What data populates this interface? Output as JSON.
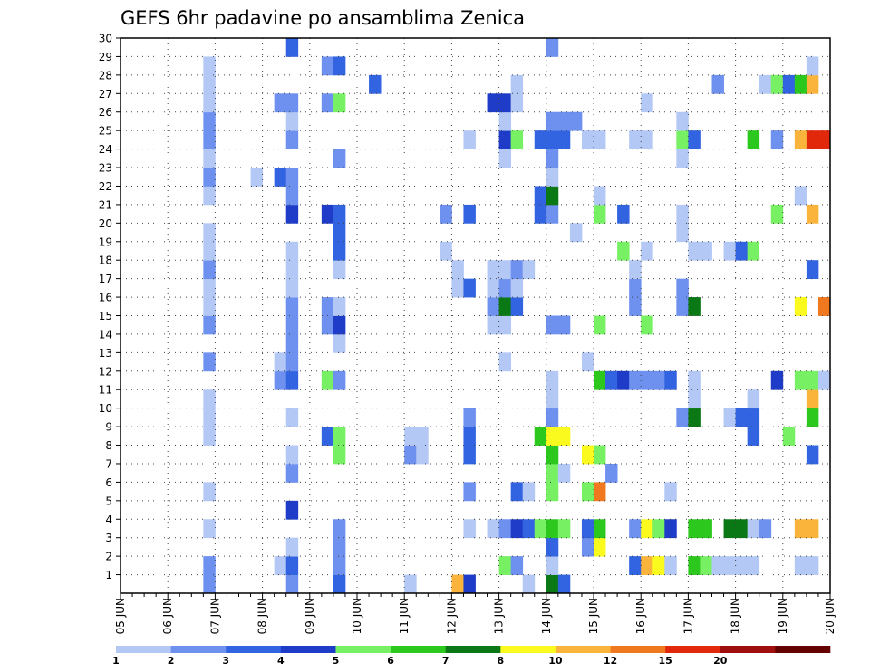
{
  "chart_data": {
    "type": "heatmap",
    "title": "GEFS 6hr padavine po ansamblima Zenica",
    "xlabel": "",
    "ylabel": "",
    "x_ticks": [
      "05 JUN",
      "06 JUN",
      "07 JUN",
      "08 JUN",
      "09 JUN",
      "10 JUN",
      "11 JUN",
      "12 JUN",
      "13 JUN",
      "14 JUN",
      "15 JUN",
      "16 JUN",
      "17 JUN",
      "18 JUN",
      "19 JUN",
      "20 JUN"
    ],
    "y_ticks": [
      "1",
      "2",
      "3",
      "4",
      "5",
      "6",
      "7",
      "8",
      "9",
      "10",
      "11",
      "12",
      "13",
      "14",
      "15",
      "16",
      "17",
      "18",
      "19",
      "20",
      "21",
      "22",
      "23",
      "24",
      "25",
      "26",
      "27",
      "28",
      "29",
      "30"
    ],
    "xlim": [
      0,
      60
    ],
    "ylim": [
      0,
      30
    ],
    "grid": true,
    "legend": "bottom",
    "colorbar": {
      "labels": [
        "1",
        "2",
        "3",
        "4",
        "5",
        "6",
        "7",
        "8",
        "10",
        "12",
        "15",
        "20"
      ],
      "colors": [
        "#b4c8f5",
        "#6e91f0",
        "#3264e1",
        "#1e3cc8",
        "#78f064",
        "#2dc81e",
        "#0a7814",
        "#fafa1e",
        "#fab43c",
        "#f0781e",
        "#e1280a",
        "#a00f0f",
        "#640000"
      ]
    },
    "cells": [
      [
        7,
        1,
        2
      ],
      [
        7,
        2,
        2
      ],
      [
        7,
        4,
        1
      ],
      [
        7,
        6,
        1
      ],
      [
        7,
        9,
        1
      ],
      [
        7,
        10,
        1
      ],
      [
        7,
        11,
        1
      ],
      [
        7,
        13,
        2
      ],
      [
        7,
        15,
        2
      ],
      [
        7,
        16,
        1
      ],
      [
        7,
        17,
        1
      ],
      [
        7,
        18,
        2
      ],
      [
        7,
        19,
        1
      ],
      [
        7,
        20,
        1
      ],
      [
        7,
        22,
        1
      ],
      [
        7,
        23,
        2
      ],
      [
        7,
        24,
        1
      ],
      [
        7,
        25,
        2
      ],
      [
        7,
        26,
        2
      ],
      [
        7,
        27,
        1
      ],
      [
        7,
        28,
        1
      ],
      [
        7,
        29,
        1
      ],
      [
        11,
        23,
        1
      ],
      [
        13,
        2,
        1
      ],
      [
        13,
        12,
        2
      ],
      [
        13,
        13,
        1
      ],
      [
        13,
        23,
        3
      ],
      [
        13,
        27,
        2
      ],
      [
        14,
        1,
        2
      ],
      [
        14,
        2,
        3
      ],
      [
        14,
        3,
        1
      ],
      [
        14,
        5,
        4
      ],
      [
        14,
        7,
        2
      ],
      [
        14,
        8,
        1
      ],
      [
        14,
        10,
        1
      ],
      [
        14,
        12,
        3
      ],
      [
        14,
        13,
        2
      ],
      [
        14,
        14,
        2
      ],
      [
        14,
        15,
        2
      ],
      [
        14,
        16,
        2
      ],
      [
        14,
        17,
        1
      ],
      [
        14,
        18,
        1
      ],
      [
        14,
        19,
        1
      ],
      [
        14,
        21,
        4
      ],
      [
        14,
        22,
        2
      ],
      [
        14,
        23,
        2
      ],
      [
        14,
        25,
        2
      ],
      [
        14,
        26,
        1
      ],
      [
        14,
        27,
        2
      ],
      [
        14,
        30,
        3
      ],
      [
        17,
        9,
        3
      ],
      [
        17,
        12,
        5
      ],
      [
        17,
        15,
        2
      ],
      [
        17,
        16,
        2
      ],
      [
        17,
        21,
        4
      ],
      [
        17,
        27,
        2
      ],
      [
        17,
        29,
        2
      ],
      [
        18,
        1,
        3
      ],
      [
        18,
        2,
        2
      ],
      [
        18,
        3,
        2
      ],
      [
        18,
        4,
        2
      ],
      [
        18,
        8,
        5
      ],
      [
        18,
        9,
        5
      ],
      [
        18,
        12,
        2
      ],
      [
        18,
        14,
        1
      ],
      [
        18,
        15,
        4
      ],
      [
        18,
        16,
        1
      ],
      [
        18,
        18,
        1
      ],
      [
        18,
        19,
        3
      ],
      [
        18,
        20,
        3
      ],
      [
        18,
        21,
        3
      ],
      [
        18,
        24,
        2
      ],
      [
        18,
        27,
        5
      ],
      [
        18,
        29,
        3
      ],
      [
        21,
        28,
        3
      ],
      [
        24,
        1,
        1
      ],
      [
        24,
        8,
        2
      ],
      [
        24,
        9,
        1
      ],
      [
        25,
        8,
        1
      ],
      [
        25,
        9,
        1
      ],
      [
        27,
        19,
        1
      ],
      [
        27,
        21,
        2
      ],
      [
        28,
        1,
        10
      ],
      [
        28,
        17,
        1
      ],
      [
        28,
        18,
        1
      ],
      [
        29,
        1,
        4
      ],
      [
        29,
        4,
        1
      ],
      [
        29,
        6,
        2
      ],
      [
        29,
        8,
        3
      ],
      [
        29,
        9,
        3
      ],
      [
        29,
        10,
        2
      ],
      [
        29,
        17,
        3
      ],
      [
        29,
        21,
        3
      ],
      [
        29,
        25,
        1
      ],
      [
        31,
        4,
        1
      ],
      [
        31,
        15,
        1
      ],
      [
        31,
        16,
        2
      ],
      [
        31,
        17,
        1
      ],
      [
        31,
        18,
        1
      ],
      [
        31,
        27,
        4
      ],
      [
        32,
        2,
        5
      ],
      [
        32,
        4,
        2
      ],
      [
        32,
        13,
        1
      ],
      [
        32,
        15,
        1
      ],
      [
        32,
        16,
        7
      ],
      [
        32,
        17,
        2
      ],
      [
        32,
        18,
        1
      ],
      [
        32,
        24,
        1
      ],
      [
        32,
        25,
        4
      ],
      [
        32,
        26,
        1
      ],
      [
        32,
        27,
        4
      ],
      [
        33,
        2,
        2
      ],
      [
        33,
        4,
        4
      ],
      [
        33,
        6,
        3
      ],
      [
        33,
        16,
        3
      ],
      [
        33,
        17,
        1
      ],
      [
        33,
        18,
        2
      ],
      [
        33,
        25,
        5
      ],
      [
        33,
        27,
        1
      ],
      [
        33,
        28,
        1
      ],
      [
        34,
        1,
        1
      ],
      [
        34,
        4,
        3
      ],
      [
        34,
        6,
        1
      ],
      [
        34,
        18,
        1
      ],
      [
        35,
        4,
        5
      ],
      [
        35,
        9,
        6
      ],
      [
        35,
        21,
        3
      ],
      [
        35,
        22,
        3
      ],
      [
        35,
        25,
        3
      ],
      [
        36,
        1,
        7
      ],
      [
        36,
        2,
        1
      ],
      [
        36,
        3,
        3
      ],
      [
        36,
        4,
        6
      ],
      [
        36,
        6,
        5
      ],
      [
        36,
        7,
        5
      ],
      [
        36,
        8,
        6
      ],
      [
        36,
        9,
        8
      ],
      [
        36,
        10,
        2
      ],
      [
        36,
        11,
        1
      ],
      [
        36,
        12,
        1
      ],
      [
        36,
        15,
        2
      ],
      [
        36,
        21,
        2
      ],
      [
        36,
        22,
        7
      ],
      [
        36,
        23,
        1
      ],
      [
        36,
        24,
        2
      ],
      [
        36,
        25,
        3
      ],
      [
        36,
        26,
        2
      ],
      [
        36,
        30,
        2
      ],
      [
        37,
        1,
        3
      ],
      [
        37,
        4,
        5
      ],
      [
        37,
        7,
        1
      ],
      [
        37,
        9,
        8
      ],
      [
        37,
        15,
        2
      ],
      [
        37,
        25,
        3
      ],
      [
        37,
        26,
        2
      ],
      [
        38,
        20,
        1
      ],
      [
        38,
        26,
        2
      ],
      [
        39,
        3,
        2
      ],
      [
        39,
        4,
        3
      ],
      [
        39,
        6,
        5
      ],
      [
        39,
        8,
        8
      ],
      [
        39,
        13,
        1
      ],
      [
        39,
        25,
        1
      ],
      [
        40,
        3,
        8
      ],
      [
        40,
        4,
        6
      ],
      [
        40,
        6,
        12
      ],
      [
        40,
        8,
        5
      ],
      [
        40,
        12,
        6
      ],
      [
        40,
        15,
        5
      ],
      [
        40,
        21,
        5
      ],
      [
        40,
        22,
        1
      ],
      [
        40,
        25,
        1
      ],
      [
        41,
        7,
        2
      ],
      [
        41,
        12,
        3
      ],
      [
        42,
        12,
        4
      ],
      [
        42,
        19,
        5
      ],
      [
        42,
        21,
        3
      ],
      [
        43,
        2,
        3
      ],
      [
        43,
        4,
        2
      ],
      [
        43,
        12,
        2
      ],
      [
        43,
        16,
        2
      ],
      [
        43,
        17,
        2
      ],
      [
        43,
        18,
        1
      ],
      [
        43,
        25,
        1
      ],
      [
        44,
        2,
        10
      ],
      [
        44,
        4,
        8
      ],
      [
        44,
        12,
        2
      ],
      [
        44,
        15,
        5
      ],
      [
        44,
        19,
        1
      ],
      [
        44,
        25,
        1
      ],
      [
        44,
        27,
        1
      ],
      [
        45,
        2,
        8
      ],
      [
        45,
        4,
        5
      ],
      [
        45,
        12,
        2
      ],
      [
        46,
        2,
        1
      ],
      [
        46,
        4,
        4
      ],
      [
        46,
        6,
        1
      ],
      [
        46,
        12,
        3
      ],
      [
        47,
        10,
        2
      ],
      [
        47,
        16,
        2
      ],
      [
        47,
        17,
        2
      ],
      [
        47,
        20,
        1
      ],
      [
        47,
        21,
        1
      ],
      [
        47,
        24,
        1
      ],
      [
        47,
        25,
        5
      ],
      [
        47,
        26,
        1
      ],
      [
        48,
        2,
        6
      ],
      [
        48,
        4,
        6
      ],
      [
        48,
        10,
        7
      ],
      [
        48,
        11,
        1
      ],
      [
        48,
        12,
        1
      ],
      [
        48,
        16,
        7
      ],
      [
        48,
        19,
        1
      ],
      [
        48,
        25,
        3
      ],
      [
        49,
        2,
        5
      ],
      [
        49,
        4,
        6
      ],
      [
        49,
        19,
        1
      ],
      [
        50,
        2,
        1
      ],
      [
        50,
        28,
        2
      ],
      [
        51,
        2,
        1
      ],
      [
        51,
        4,
        7
      ],
      [
        51,
        10,
        1
      ],
      [
        51,
        19,
        1
      ],
      [
        52,
        2,
        1
      ],
      [
        52,
        4,
        7
      ],
      [
        52,
        10,
        3
      ],
      [
        52,
        19,
        3
      ],
      [
        53,
        2,
        1
      ],
      [
        53,
        4,
        1
      ],
      [
        53,
        9,
        3
      ],
      [
        53,
        10,
        3
      ],
      [
        53,
        11,
        1
      ],
      [
        53,
        19,
        5
      ],
      [
        53,
        25,
        6
      ],
      [
        54,
        4,
        2
      ],
      [
        54,
        28,
        1
      ],
      [
        55,
        12,
        4
      ],
      [
        55,
        21,
        5
      ],
      [
        55,
        25,
        2
      ],
      [
        55,
        28,
        5
      ],
      [
        56,
        9,
        5
      ],
      [
        56,
        28,
        3
      ],
      [
        57,
        2,
        1
      ],
      [
        57,
        4,
        10
      ],
      [
        57,
        12,
        5
      ],
      [
        57,
        16,
        8
      ],
      [
        57,
        22,
        1
      ],
      [
        57,
        25,
        10
      ],
      [
        57,
        28,
        6
      ],
      [
        58,
        2,
        1
      ],
      [
        58,
        4,
        10
      ],
      [
        58,
        8,
        3
      ],
      [
        58,
        10,
        6
      ],
      [
        58,
        11,
        10
      ],
      [
        58,
        12,
        5
      ],
      [
        58,
        18,
        3
      ],
      [
        58,
        21,
        10
      ],
      [
        58,
        25,
        15
      ],
      [
        58,
        28,
        10
      ],
      [
        58,
        29,
        1
      ],
      [
        59,
        12,
        1
      ],
      [
        59,
        16,
        12
      ],
      [
        59,
        25,
        15
      ]
    ]
  }
}
